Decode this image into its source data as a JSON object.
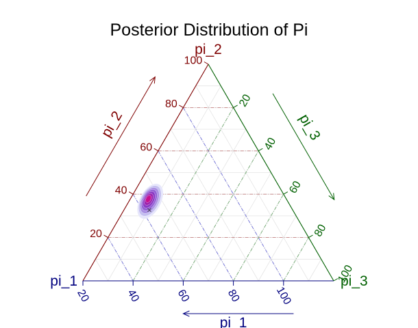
{
  "chart_data": {
    "type": "ternary-density",
    "title": "Posterior Distribution of Pi",
    "vertices": [
      "pi_1",
      "pi_2",
      "pi_3"
    ],
    "axis_labels": [
      "pi_1",
      "pi_2",
      "pi_3"
    ],
    "axis_colors": [
      "#00007f",
      "#7f0000",
      "#006000"
    ],
    "ticks": [
      20,
      40,
      60,
      80,
      100
    ],
    "tick_labels": {
      "pi_1": [
        "100",
        "80",
        "60",
        "40",
        "20"
      ],
      "pi_2": [
        "20",
        "40",
        "60",
        "80",
        "100"
      ],
      "pi_3": [
        "20",
        "40",
        "60",
        "80",
        "100"
      ]
    },
    "ternary_sum": 100,
    "grid": true,
    "density": {
      "peak": {
        "pi_1": 55,
        "pi_2": 38,
        "pi_3": 7
      },
      "mean_marker": {
        "pi_1": 57,
        "pi_2": 33,
        "pi_3": 10
      },
      "contour_levels": 7,
      "colors": [
        "#e6e6fb",
        "#c4bff0",
        "#a98fe3",
        "#9460d6",
        "#8a39c4",
        "#9e22ad",
        "#c60f8f"
      ]
    }
  }
}
